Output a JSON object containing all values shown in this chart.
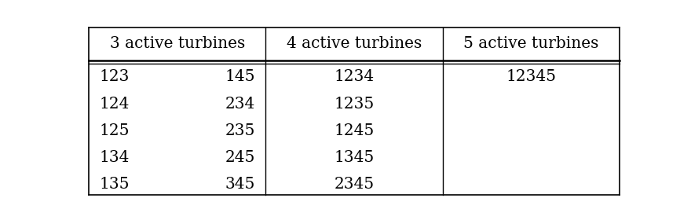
{
  "headers": [
    "3 active turbines",
    "4 active turbines",
    "5 active turbines"
  ],
  "col1_left": [
    "123",
    "124",
    "125",
    "134",
    "135"
  ],
  "col1_right": [
    "145",
    "234",
    "235",
    "245",
    "345"
  ],
  "col2": [
    "1234",
    "1235",
    "1245",
    "1345",
    "2345"
  ],
  "col3": [
    "12345",
    "",
    "",
    "",
    ""
  ],
  "bg_color": "#ffffff",
  "text_color": "#000000",
  "header_fontsize": 14.5,
  "cell_fontsize": 14.5,
  "font_family": "serif"
}
